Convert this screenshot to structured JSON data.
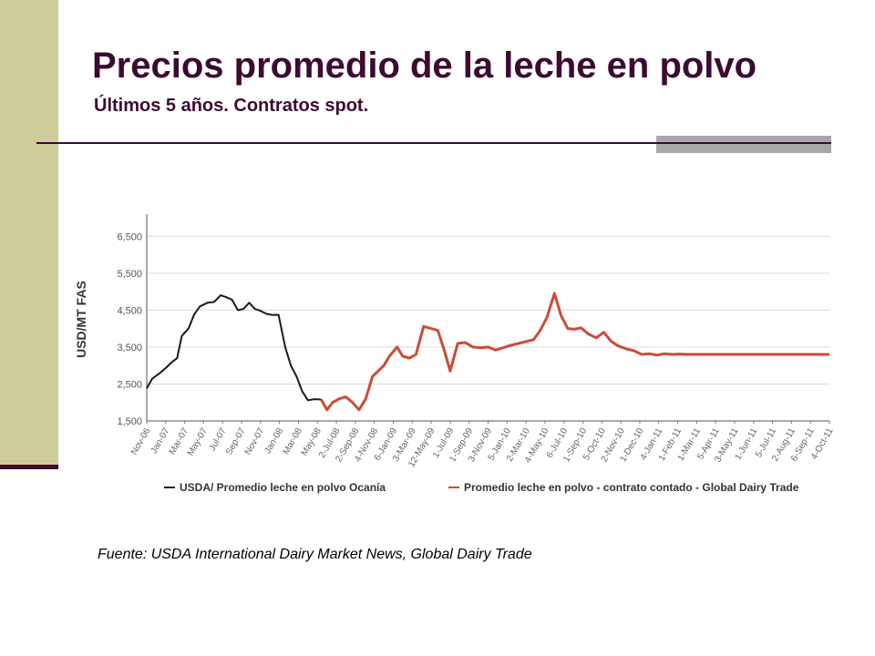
{
  "slide": {
    "title": "Precios promedio de la leche en polvo",
    "subtitle": "Últimos 5 años. Contratos spot.",
    "source": "Fuente: USDA International Dairy Market News, Global Dairy Trade"
  },
  "colors": {
    "accent": "#3c0a32",
    "sidebar": "#cfcc9b",
    "usda_series": "#1a1a1a",
    "gdt_series": "#cc4b37"
  },
  "chart_data": {
    "type": "line",
    "ylabel": "USD/MT FAS",
    "xlabel": "",
    "ylim": [
      1500,
      7000
    ],
    "yticks": [
      1500,
      2500,
      3500,
      4500,
      5500,
      6500
    ],
    "ytick_labels": [
      "1,500",
      "2,500",
      "3,500",
      "4,500",
      "5,500",
      "6,500"
    ],
    "grid": true,
    "legend_position": "bottom",
    "x_labels": [
      "Nov-06",
      "Jan-07",
      "Mar-07",
      "May-07",
      "Jul-07",
      "Sep-07",
      "Nov-07",
      "Jan-08",
      "Mar-08",
      "May-08",
      "2-Jul-08",
      "2-Sep-08",
      "4-Nov-08",
      "6-Jan-09",
      "3-Mar-09",
      "12-May-09",
      "1-Jul-09",
      "1-Sep-09",
      "3-Nov-09",
      "5-Jan-10",
      "2-Mar-10",
      "4-May-10",
      "6-Jul-10",
      "1-Sep-10",
      "5-Oct-10",
      "2-Nov-10",
      "1-Dec-10",
      "4-Jan-11",
      "1-Feb-11",
      "1-Mar-11",
      "5-Apr-11",
      "3-May-11",
      "1-Jun-11",
      "5-Jul-11",
      "2-Aug-11",
      "6-Sep-11",
      "4-Oct-11"
    ],
    "series": [
      {
        "name": "USDA/ Promedio leche en polvo Ocanía",
        "x": [
          0,
          0.3,
          0.7,
          1.0,
          1.3,
          1.6,
          1.85,
          2.2,
          2.5,
          2.8,
          3.2,
          3.55,
          3.9,
          4.2,
          4.5,
          4.8,
          5.1,
          5.4,
          5.7,
          6.0,
          6.3,
          6.6,
          6.95,
          7.3,
          7.6,
          7.9,
          8.2,
          8.5,
          8.85,
          9.2
        ],
        "y": [
          2380,
          2650,
          2800,
          2930,
          3080,
          3200,
          3800,
          4000,
          4380,
          4600,
          4700,
          4720,
          4900,
          4850,
          4780,
          4500,
          4530,
          4700,
          4530,
          4480,
          4400,
          4370,
          4370,
          3500,
          3000,
          2700,
          2300,
          2060,
          2090,
          2080
        ]
      },
      {
        "name": "Promedio leche en polvo - contrato contado - Global Dairy Trade",
        "x": [
          9.2,
          9.5,
          9.8,
          10.15,
          10.5,
          10.85,
          11.2,
          11.55,
          11.9,
          12.2,
          12.5,
          12.8,
          13.2,
          13.5,
          13.85,
          14.2,
          14.6,
          15.0,
          15.35,
          15.7,
          16.0,
          16.4,
          16.8,
          17.2,
          17.6,
          18.0,
          18.4,
          18.8,
          19.2,
          19.6,
          20.0,
          20.4,
          20.75,
          21.1,
          21.5,
          21.85,
          22.2,
          22.55,
          22.9,
          23.3,
          23.7,
          24.1,
          24.5,
          24.9,
          25.3,
          25.7,
          26.1,
          26.5,
          26.9,
          27.3,
          27.7,
          28.1,
          28.5,
          28.9,
          29.3,
          29.7,
          30.1,
          30.5,
          30.9,
          31.3,
          31.7,
          32.1,
          32.5,
          32.9,
          33.3,
          33.7,
          34.1,
          34.5,
          34.9,
          35.3,
          35.7,
          36.0
        ],
        "y": [
          2080,
          1800,
          2000,
          2100,
          2150,
          2000,
          1800,
          2100,
          2700,
          2850,
          3000,
          3250,
          3500,
          3250,
          3200,
          3300,
          4060,
          4000,
          3950,
          3400,
          2850,
          3600,
          3620,
          3500,
          3480,
          3500,
          3420,
          3480,
          3550,
          3600,
          3650,
          3700,
          3950,
          4300,
          4950,
          4350,
          4000,
          3980,
          4020,
          3850,
          3750,
          3900,
          3650,
          3520,
          3450,
          3400,
          3300,
          3320,
          3280,
          3320,
          3300,
          3310,
          3300,
          3300,
          3300,
          3300,
          3300,
          3300,
          3300,
          3300,
          3300,
          3300,
          3300,
          3300,
          3300,
          3300,
          3300,
          3300,
          3300,
          3300,
          3300,
          3300
        ]
      }
    ]
  }
}
